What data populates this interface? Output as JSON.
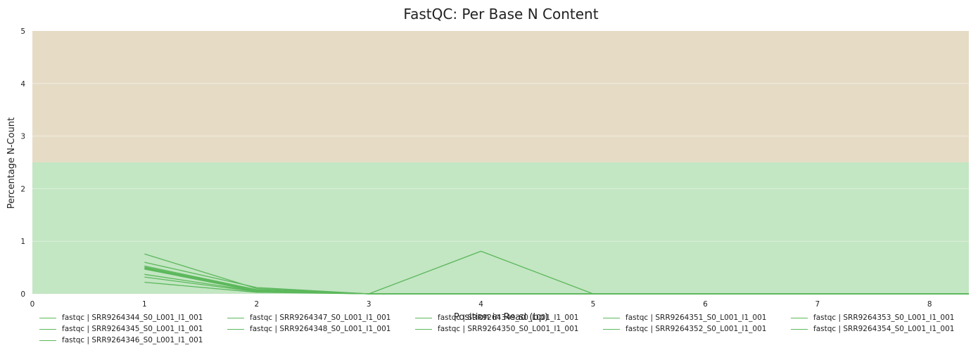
{
  "chart_data": {
    "type": "line",
    "title": "FastQC: Per Base N Content",
    "xlabel": "Position in Read (bp)",
    "ylabel": "Percentage N-Count",
    "xlim": [
      0,
      8.35
    ],
    "ylim": [
      0,
      5
    ],
    "xticks": [
      "0",
      "1",
      "2",
      "3",
      "4",
      "5",
      "6",
      "7",
      "8"
    ],
    "yticks": [
      "0",
      "1",
      "2",
      "3",
      "4",
      "5"
    ],
    "grid": true,
    "legend_position": "bottom",
    "bands": [
      {
        "from": 0,
        "to": 2.5,
        "color": "#c3e6c3"
      },
      {
        "from": 2.5,
        "to": 5,
        "color": "#e6dcc6"
      }
    ],
    "x": [
      1,
      2,
      3,
      4,
      5,
      6,
      7,
      8,
      8.35
    ],
    "series_color": "#5cb85c",
    "series": [
      {
        "name": "fastqc | SRR9264344_S0_L001_I1_001",
        "values": [
          0.76,
          0.1,
          0,
          0,
          0,
          0,
          0,
          0,
          0
        ]
      },
      {
        "name": "fastqc | SRR9264345_S0_L001_I1_001",
        "values": [
          0.6,
          0.12,
          0,
          0,
          0,
          0,
          0,
          0,
          0
        ]
      },
      {
        "name": "fastqc | SRR9264346_S0_L001_I1_001",
        "values": [
          0.53,
          0.08,
          0,
          0,
          0,
          0,
          0,
          0,
          0
        ]
      },
      {
        "name": "fastqc | SRR9264347_S0_L001_I1_001",
        "values": [
          0.51,
          0.07,
          0,
          0,
          0,
          0,
          0,
          0,
          0
        ]
      },
      {
        "name": "fastqc | SRR9264348_S0_L001_I1_001",
        "values": [
          0.49,
          0.06,
          0,
          0,
          0,
          0,
          0,
          0,
          0
        ]
      },
      {
        "name": "fastqc | SRR9264349_S0_L001_I1_001",
        "values": [
          0.47,
          0.05,
          0,
          0.81,
          0,
          0,
          0,
          0,
          0
        ]
      },
      {
        "name": "fastqc | SRR9264350_S0_L001_I1_001",
        "values": [
          0.37,
          0.05,
          0,
          0,
          0,
          0,
          0,
          0,
          0
        ]
      },
      {
        "name": "fastqc | SRR9264351_S0_L001_I1_001",
        "values": [
          0.32,
          0.04,
          0,
          0,
          0,
          0,
          0,
          0,
          0
        ]
      },
      {
        "name": "fastqc | SRR9264352_S0_L001_I1_001",
        "values": [
          0.22,
          0.03,
          0,
          0,
          0,
          0,
          0,
          0,
          0
        ]
      },
      {
        "name": "fastqc | SRR9264353_S0_L001_I1_001",
        "values": [
          0.5,
          0.07,
          0,
          0,
          0,
          0,
          0,
          0,
          0
        ]
      },
      {
        "name": "fastqc | SRR9264354_S0_L001_I1_001",
        "values": [
          0.48,
          0.06,
          0,
          0,
          0,
          0,
          0,
          0,
          0
        ]
      }
    ]
  }
}
